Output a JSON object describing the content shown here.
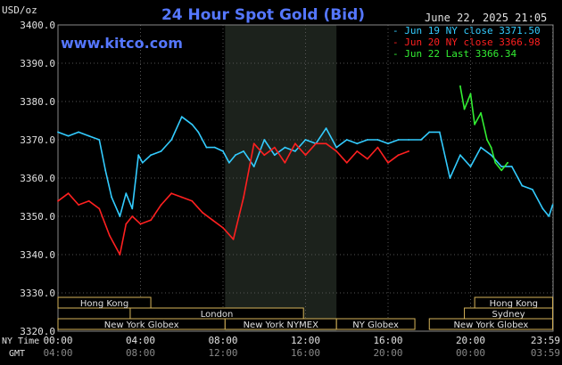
{
  "chart_data": {
    "type": "line",
    "title": "24 Hour Spot Gold (Bid)",
    "ylabel": "USD/oz",
    "watermark": "www.kitco.com",
    "timestamp": "June 22, 2025 21:05",
    "ylim": [
      3320,
      3400
    ],
    "yticks": [
      "3400.0",
      "3390.0",
      "3380.0",
      "3370.0",
      "3360.0",
      "3350.0",
      "3340.0",
      "3330.0",
      "3320.0"
    ],
    "x_time_ny_label": "NY Time",
    "x_time_gmt_label": "GMT",
    "xticks_ny": [
      "00:00",
      "04:00",
      "08:00",
      "12:00",
      "16:00",
      "20:00",
      "23:59"
    ],
    "xticks_gmt": [
      "04:00",
      "08:00",
      "12:00",
      "16:00",
      "20:00",
      "00:00",
      "03:59"
    ],
    "xticks_hours": [
      0,
      4,
      8,
      12,
      16,
      20,
      23.98
    ],
    "xlim": [
      0,
      24
    ],
    "shaded_region_hours": [
      8.1,
      13.5
    ],
    "legend": [
      {
        "dash": "-",
        "label": "Jun 19 NY close",
        "value": "3371.50",
        "color": "#33ccff"
      },
      {
        "dash": "-",
        "label": "Jun 20 NY close",
        "value": "3366.98",
        "color": "#ff2020"
      },
      {
        "dash": "-",
        "label": "Jun 22 Last",
        "value": "3366.34",
        "color": "#33ee33"
      }
    ],
    "series": [
      {
        "name": "Jun 19 NY close",
        "color": "#33ccff",
        "x": [
          0,
          0.5,
          1.0,
          1.5,
          2.0,
          2.3,
          2.6,
          3.0,
          3.3,
          3.6,
          3.9,
          4.1,
          4.5,
          5.0,
          5.5,
          6.0,
          6.5,
          6.8,
          7.2,
          7.6,
          8.0,
          8.3,
          8.6,
          9.0,
          9.5,
          10.0,
          10.5,
          11.0,
          11.5,
          12.0,
          12.5,
          13.0,
          13.5,
          14.0,
          14.5,
          15.0,
          15.5,
          16.0,
          16.5,
          17.0,
          17.6,
          18.0,
          18.5,
          19.0,
          19.5,
          20.0,
          20.5,
          21.0,
          21.5,
          22.0,
          22.5,
          23.0,
          23.5,
          23.8,
          23.98
        ],
        "values": [
          3372,
          3371,
          3372,
          3371,
          3370,
          3362,
          3355,
          3350,
          3356,
          3352,
          3366,
          3364,
          3366,
          3367,
          3370,
          3376,
          3374,
          3372,
          3368,
          3368,
          3367,
          3364,
          3366,
          3367,
          3363,
          3370,
          3366,
          3368,
          3367,
          3370,
          3369,
          3373,
          3368,
          3370,
          3369,
          3370,
          3370,
          3369,
          3370,
          3370,
          3370,
          3372,
          3372,
          3360,
          3366,
          3363,
          3368,
          3366,
          3363,
          3363,
          3358,
          3357,
          3352,
          3350,
          3353
        ]
      },
      {
        "name": "Jun 20 NY close",
        "color": "#ff2020",
        "x": [
          0,
          0.5,
          1.0,
          1.5,
          2.0,
          2.5,
          3.0,
          3.3,
          3.6,
          4.0,
          4.5,
          5.0,
          5.5,
          6.0,
          6.5,
          7.0,
          7.5,
          8.0,
          8.5,
          9.0,
          9.5,
          10.0,
          10.5,
          11.0,
          11.5,
          12.0,
          12.5,
          13.0,
          13.5,
          14.0,
          14.5,
          15.0,
          15.5,
          16.0,
          16.5,
          17.0
        ],
        "values": [
          3354,
          3356,
          3353,
          3354,
          3352,
          3345,
          3340,
          3348,
          3350,
          3348,
          3349,
          3353,
          3356,
          3355,
          3354,
          3351,
          3349,
          3347,
          3344,
          3355,
          3369,
          3366,
          3368,
          3364,
          3369,
          3366,
          3369,
          3369,
          3367,
          3364,
          3367,
          3365,
          3368,
          3364,
          3366,
          3367
        ]
      },
      {
        "name": "Jun 22 Last",
        "color": "#33ee33",
        "x": [
          19.5,
          19.7,
          20.0,
          20.2,
          20.5,
          20.8,
          21.0,
          21.2,
          21.5,
          21.8
        ],
        "values": [
          3384,
          3378,
          3382,
          3374,
          3377,
          3370,
          3368,
          3364,
          3362,
          3364
        ]
      }
    ],
    "sessions": {
      "row1": [
        {
          "label": "Hong Kong",
          "start": 0,
          "end": 4.5
        },
        {
          "label": "Hong Kong",
          "start": 20.2,
          "end": 23.98
        }
      ],
      "row2": [
        {
          "label": "London",
          "start": 3.5,
          "end": 11.9
        },
        {
          "label": "Sydney",
          "start": 19.7,
          "end": 23.98
        }
      ],
      "row3": [
        {
          "label": "New York Globex",
          "start": 0,
          "end": 8.1
        },
        {
          "label": "New York NYMEX",
          "start": 8.1,
          "end": 13.5
        },
        {
          "label": "NY Globex",
          "start": 13.5,
          "end": 17.3
        },
        {
          "label": "New York Globex",
          "start": 18.0,
          "end": 23.98
        }
      ]
    }
  }
}
